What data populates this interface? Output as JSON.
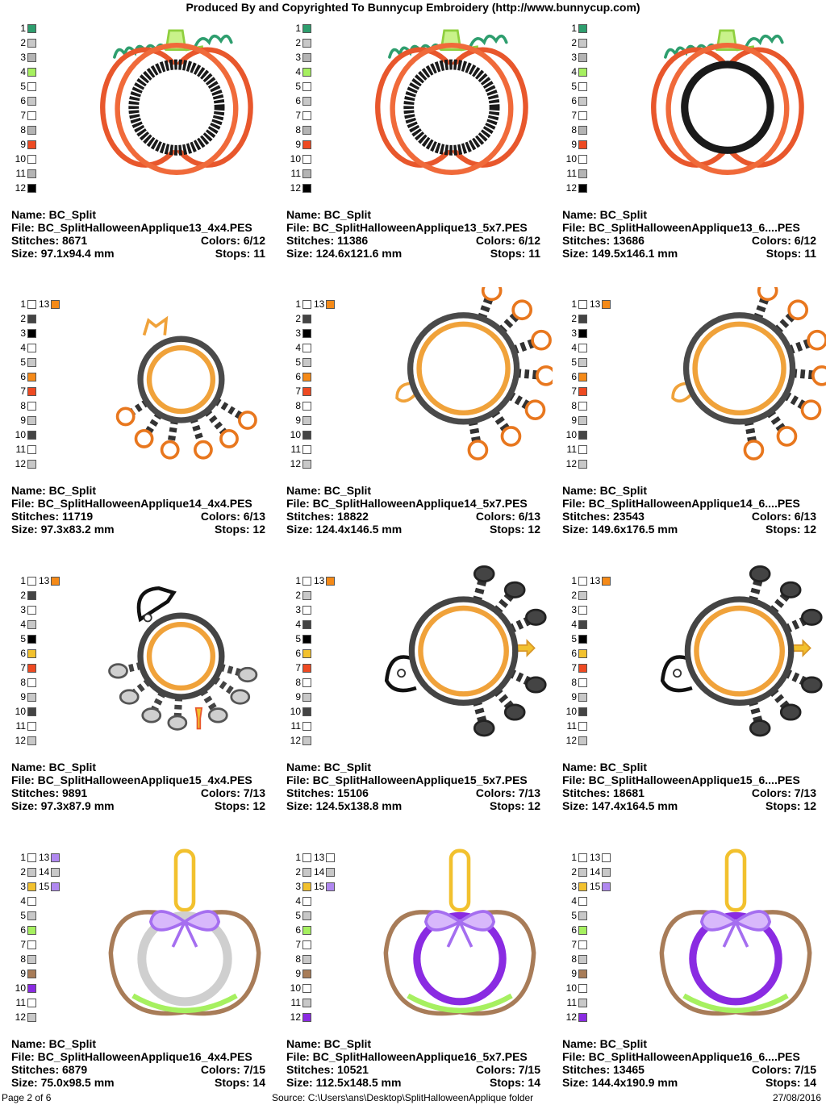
{
  "header": "Produced By and Copyrighted To Bunnycup Embroidery (http://www.bunnycup.com)",
  "footer": {
    "page": "Page 2 of 6",
    "source": "Source: C:\\Users\\ans\\Desktop\\SplitHalloweenApplique folder",
    "date": "27/08/2016"
  },
  "labels": {
    "name": "Name:",
    "file": "File:",
    "stitches": "Stitches:",
    "colors": "Colors:",
    "size": "Size:",
    "stops": "Stops:"
  },
  "designs": [
    {
      "motif": "pumpkin",
      "variant": 0,
      "name": "BC_Split",
      "file": "BC_SplitHalloweenApplique13_4x4.PES",
      "stitches": "8671",
      "colors": "6/12",
      "size": "97.1x94.4 mm",
      "stops": "11",
      "palette": [
        [
          "1",
          "#2e9e6e"
        ],
        [
          "2",
          "#c8c8c8"
        ],
        [
          "3",
          "#b4b4b4"
        ],
        [
          "4",
          "#a6f060"
        ],
        [
          "5",
          "#ffffff"
        ],
        [
          "6",
          "#c8c8c8"
        ],
        [
          "7",
          "#ffffff"
        ],
        [
          "8",
          "#b4b4b4"
        ],
        [
          "9",
          "#ee4a22"
        ],
        [
          "10",
          "#ffffff"
        ],
        [
          "11",
          "#b4b4b4"
        ],
        [
          "12",
          "#000000"
        ]
      ],
      "extra": []
    },
    {
      "motif": "pumpkin",
      "variant": 0,
      "name": "BC_Split",
      "file": "BC_SplitHalloweenApplique13_5x7.PES",
      "stitches": "11386",
      "colors": "6/12",
      "size": "124.6x121.6 mm",
      "stops": "11",
      "palette": [
        [
          "1",
          "#2e9e6e"
        ],
        [
          "2",
          "#c8c8c8"
        ],
        [
          "3",
          "#b4b4b4"
        ],
        [
          "4",
          "#a6f060"
        ],
        [
          "5",
          "#ffffff"
        ],
        [
          "6",
          "#c8c8c8"
        ],
        [
          "7",
          "#ffffff"
        ],
        [
          "8",
          "#b4b4b4"
        ],
        [
          "9",
          "#ee4a22"
        ],
        [
          "10",
          "#ffffff"
        ],
        [
          "11",
          "#b4b4b4"
        ],
        [
          "12",
          "#000000"
        ]
      ],
      "extra": []
    },
    {
      "motif": "pumpkin",
      "variant": 1,
      "name": "BC_Split",
      "file": "BC_SplitHalloweenApplique13_6....PES",
      "stitches": "13686",
      "colors": "6/12",
      "size": "149.5x146.1 mm",
      "stops": "11",
      "palette": [
        [
          "1",
          "#2e9e6e"
        ],
        [
          "2",
          "#c8c8c8"
        ],
        [
          "3",
          "#b4b4b4"
        ],
        [
          "4",
          "#a6f060"
        ],
        [
          "5",
          "#ffffff"
        ],
        [
          "6",
          "#c8c8c8"
        ],
        [
          "7",
          "#ffffff"
        ],
        [
          "8",
          "#b4b4b4"
        ],
        [
          "9",
          "#ee4a22"
        ],
        [
          "10",
          "#ffffff"
        ],
        [
          "11",
          "#b4b4b4"
        ],
        [
          "12",
          "#000000"
        ]
      ],
      "extra": []
    },
    {
      "motif": "spider",
      "variant": 0,
      "name": "BC_Split",
      "file": "BC_SplitHalloweenApplique14_4x4.PES",
      "stitches": "11719",
      "colors": "6/13",
      "size": "97.3x83.2 mm",
      "stops": "12",
      "palette": [
        [
          "1",
          "#ffffff"
        ],
        [
          "2",
          "#444444"
        ],
        [
          "3",
          "#000000"
        ],
        [
          "4",
          "#ffffff"
        ],
        [
          "5",
          "#c8c8c8"
        ],
        [
          "6",
          "#f58a18"
        ],
        [
          "7",
          "#ee4a22"
        ],
        [
          "8",
          "#ffffff"
        ],
        [
          "9",
          "#c8c8c8"
        ],
        [
          "10",
          "#444444"
        ],
        [
          "11",
          "#ffffff"
        ],
        [
          "12",
          "#c8c8c8"
        ]
      ],
      "extra": [
        [
          "13",
          "#f58a18"
        ]
      ]
    },
    {
      "motif": "spider",
      "variant": 1,
      "name": "BC_Split",
      "file": "BC_SplitHalloweenApplique14_5x7.PES",
      "stitches": "18822",
      "colors": "6/13",
      "size": "124.4x146.5 mm",
      "stops": "12",
      "palette": [
        [
          "1",
          "#ffffff"
        ],
        [
          "2",
          "#444444"
        ],
        [
          "3",
          "#000000"
        ],
        [
          "4",
          "#ffffff"
        ],
        [
          "5",
          "#c8c8c8"
        ],
        [
          "6",
          "#f58a18"
        ],
        [
          "7",
          "#ee4a22"
        ],
        [
          "8",
          "#ffffff"
        ],
        [
          "9",
          "#c8c8c8"
        ],
        [
          "10",
          "#444444"
        ],
        [
          "11",
          "#ffffff"
        ],
        [
          "12",
          "#c8c8c8"
        ]
      ],
      "extra": [
        [
          "13",
          "#f58a18"
        ]
      ]
    },
    {
      "motif": "spider",
      "variant": 1,
      "name": "BC_Split",
      "file": "BC_SplitHalloweenApplique14_6....PES",
      "stitches": "23543",
      "colors": "6/13",
      "size": "149.6x176.5 mm",
      "stops": "12",
      "palette": [
        [
          "1",
          "#ffffff"
        ],
        [
          "2",
          "#444444"
        ],
        [
          "3",
          "#000000"
        ],
        [
          "4",
          "#ffffff"
        ],
        [
          "5",
          "#c8c8c8"
        ],
        [
          "6",
          "#f58a18"
        ],
        [
          "7",
          "#ee4a22"
        ],
        [
          "8",
          "#ffffff"
        ],
        [
          "9",
          "#c8c8c8"
        ],
        [
          "10",
          "#444444"
        ],
        [
          "11",
          "#ffffff"
        ],
        [
          "12",
          "#c8c8c8"
        ]
      ],
      "extra": [
        [
          "13",
          "#f58a18"
        ]
      ]
    },
    {
      "motif": "spider2",
      "variant": 0,
      "name": "BC_Split",
      "file": "BC_SplitHalloweenApplique15_4x4.PES",
      "stitches": "9891",
      "colors": "7/13",
      "size": "97.3x87.9 mm",
      "stops": "12",
      "palette": [
        [
          "1",
          "#ffffff"
        ],
        [
          "2",
          "#444444"
        ],
        [
          "3",
          "#ffffff"
        ],
        [
          "4",
          "#c8c8c8"
        ],
        [
          "5",
          "#000000"
        ],
        [
          "6",
          "#f2c12e"
        ],
        [
          "7",
          "#ee4a22"
        ],
        [
          "8",
          "#ffffff"
        ],
        [
          "9",
          "#c8c8c8"
        ],
        [
          "10",
          "#444444"
        ],
        [
          "11",
          "#ffffff"
        ],
        [
          "12",
          "#c8c8c8"
        ]
      ],
      "extra": [
        [
          "13",
          "#f58a18"
        ]
      ]
    },
    {
      "motif": "spider2",
      "variant": 1,
      "name": "BC_Split",
      "file": "BC_SplitHalloweenApplique15_5x7.PES",
      "stitches": "15106",
      "colors": "7/13",
      "size": "124.5x138.8 mm",
      "stops": "12",
      "palette": [
        [
          "1",
          "#ffffff"
        ],
        [
          "2",
          "#c8c8c8"
        ],
        [
          "3",
          "#ffffff"
        ],
        [
          "4",
          "#444444"
        ],
        [
          "5",
          "#000000"
        ],
        [
          "6",
          "#f2c12e"
        ],
        [
          "7",
          "#ee4a22"
        ],
        [
          "8",
          "#ffffff"
        ],
        [
          "9",
          "#c8c8c8"
        ],
        [
          "10",
          "#444444"
        ],
        [
          "11",
          "#ffffff"
        ],
        [
          "12",
          "#c8c8c8"
        ]
      ],
      "extra": [
        [
          "13",
          "#f58a18"
        ]
      ]
    },
    {
      "motif": "spider2",
      "variant": 1,
      "name": "BC_Split",
      "file": "BC_SplitHalloweenApplique15_6....PES",
      "stitches": "18681",
      "colors": "7/13",
      "size": "147.4x164.5 mm",
      "stops": "12",
      "palette": [
        [
          "1",
          "#ffffff"
        ],
        [
          "2",
          "#c8c8c8"
        ],
        [
          "3",
          "#ffffff"
        ],
        [
          "4",
          "#444444"
        ],
        [
          "5",
          "#000000"
        ],
        [
          "6",
          "#f2c12e"
        ],
        [
          "7",
          "#ee4a22"
        ],
        [
          "8",
          "#ffffff"
        ],
        [
          "9",
          "#c8c8c8"
        ],
        [
          "10",
          "#444444"
        ],
        [
          "11",
          "#ffffff"
        ],
        [
          "12",
          "#c8c8c8"
        ]
      ],
      "extra": [
        [
          "13",
          "#f58a18"
        ]
      ]
    },
    {
      "motif": "apple",
      "variant": 0,
      "name": "BC_Split",
      "file": "BC_SplitHalloweenApplique16_4x4.PES",
      "stitches": "6879",
      "colors": "7/15",
      "size": "75.0x98.5 mm",
      "stops": "14",
      "palette": [
        [
          "1",
          "#ffffff"
        ],
        [
          "2",
          "#c8c8c8"
        ],
        [
          "3",
          "#f2c12e"
        ],
        [
          "4",
          "#ffffff"
        ],
        [
          "5",
          "#c8c8c8"
        ],
        [
          "6",
          "#a6f060"
        ],
        [
          "7",
          "#ffffff"
        ],
        [
          "8",
          "#c8c8c8"
        ],
        [
          "9",
          "#a87c58"
        ],
        [
          "10",
          "#8a2be2"
        ],
        [
          "11",
          "#ffffff"
        ],
        [
          "12",
          "#c8c8c8"
        ]
      ],
      "extra": [
        [
          "13",
          "#b088f0"
        ],
        [
          "14",
          "#c8c8c8"
        ],
        [
          "15",
          "#b088f0"
        ]
      ]
    },
    {
      "motif": "apple",
      "variant": 1,
      "name": "BC_Split",
      "file": "BC_SplitHalloweenApplique16_5x7.PES",
      "stitches": "10521",
      "colors": "7/15",
      "size": "112.5x148.5 mm",
      "stops": "14",
      "palette": [
        [
          "1",
          "#ffffff"
        ],
        [
          "2",
          "#c8c8c8"
        ],
        [
          "3",
          "#f2c12e"
        ],
        [
          "4",
          "#ffffff"
        ],
        [
          "5",
          "#c8c8c8"
        ],
        [
          "6",
          "#a6f060"
        ],
        [
          "7",
          "#ffffff"
        ],
        [
          "8",
          "#c8c8c8"
        ],
        [
          "9",
          "#a87c58"
        ],
        [
          "10",
          "#ffffff"
        ],
        [
          "11",
          "#c8c8c8"
        ],
        [
          "12",
          "#8a2be2"
        ]
      ],
      "extra": [
        [
          "13",
          "#ffffff"
        ],
        [
          "14",
          "#c8c8c8"
        ],
        [
          "15",
          "#b088f0"
        ]
      ]
    },
    {
      "motif": "apple",
      "variant": 1,
      "name": "BC_Split",
      "file": "BC_SplitHalloweenApplique16_6....PES",
      "stitches": "13465",
      "colors": "7/15",
      "size": "144.4x190.9 mm",
      "stops": "14",
      "palette": [
        [
          "1",
          "#ffffff"
        ],
        [
          "2",
          "#c8c8c8"
        ],
        [
          "3",
          "#f2c12e"
        ],
        [
          "4",
          "#ffffff"
        ],
        [
          "5",
          "#c8c8c8"
        ],
        [
          "6",
          "#a6f060"
        ],
        [
          "7",
          "#ffffff"
        ],
        [
          "8",
          "#c8c8c8"
        ],
        [
          "9",
          "#a87c58"
        ],
        [
          "10",
          "#ffffff"
        ],
        [
          "11",
          "#c8c8c8"
        ],
        [
          "12",
          "#8a2be2"
        ]
      ],
      "extra": [
        [
          "13",
          "#ffffff"
        ],
        [
          "14",
          "#c8c8c8"
        ],
        [
          "15",
          "#b088f0"
        ]
      ]
    }
  ]
}
